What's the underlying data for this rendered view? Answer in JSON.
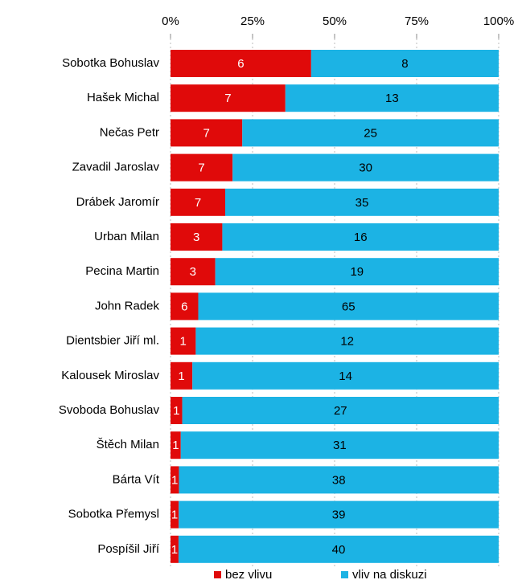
{
  "chart_data": {
    "type": "bar",
    "orientation": "horizontal",
    "stacking": "percent",
    "categories": [
      "Sobotka Bohuslav",
      "Hašek Michal",
      "Nečas Petr",
      "Zavadil Jaroslav",
      "Drábek Jaromír",
      "Urban Milan",
      "Pecina Martin",
      "John Radek",
      "Dientsbier Jiří ml.",
      "Kalousek Miroslav",
      "Svoboda Bohuslav",
      "Štěch Milan",
      "Bárta Vít",
      "Sobotka Přemysl",
      "Pospíšil Jiří"
    ],
    "series": [
      {
        "name": "bez vlivu",
        "color": "#e00a0a",
        "label_color": "#ffffff",
        "values": [
          6,
          7,
          7,
          7,
          7,
          3,
          3,
          6,
          1,
          1,
          1,
          1,
          1,
          1,
          1
        ]
      },
      {
        "name": "vliv na diskuzi",
        "color": "#1cb3e4",
        "label_color": "#000000",
        "values": [
          8,
          13,
          25,
          30,
          35,
          16,
          19,
          65,
          12,
          14,
          27,
          31,
          38,
          39,
          40
        ]
      }
    ],
    "xlim": [
      0,
      100
    ],
    "xticks": [
      {
        "value": 0,
        "label": "0%"
      },
      {
        "value": 25,
        "label": "25%"
      },
      {
        "value": 50,
        "label": "50%"
      },
      {
        "value": 75,
        "label": "75%"
      },
      {
        "value": 100,
        "label": "100%"
      }
    ],
    "grid": true,
    "legend": "bottom"
  }
}
